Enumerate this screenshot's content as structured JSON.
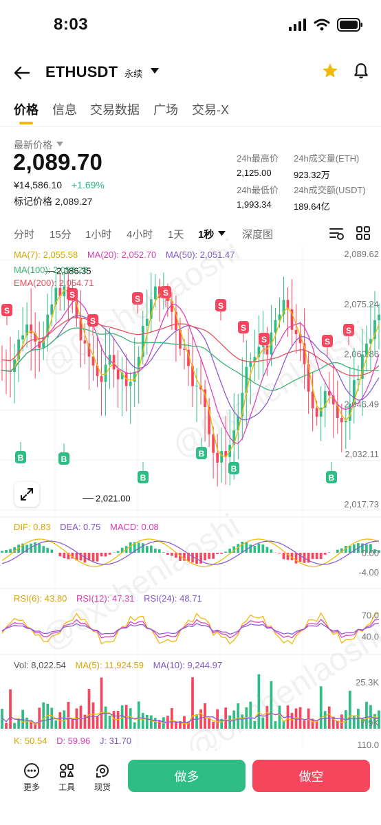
{
  "status_bar": {
    "time": "8:03"
  },
  "header": {
    "symbol": "ETHUSDT",
    "contract_type": "永续"
  },
  "tabs": [
    "价格",
    "信息",
    "交易数据",
    "广场",
    "交易-X"
  ],
  "price": {
    "latest_label": "最新价格",
    "last_price": "2,089.70",
    "cny_price": "¥14,586.10",
    "change_pct": "+1.69%",
    "mark_price": "标记价格 2,089.27"
  },
  "stats": {
    "high_24h_label": "24h最高价",
    "high_24h": "2,125.00",
    "vol_eth_label": "24h成交量(ETH)",
    "vol_eth": "923.32万",
    "low_24h_label": "24h最低价",
    "low_24h": "1,993.34",
    "vol_usdt_label": "24h成交额(USDT)",
    "vol_usdt": "189.64亿"
  },
  "timeframes": [
    "分时",
    "15分",
    "1小时",
    "4小时",
    "1天",
    "1秒",
    "深度图"
  ],
  "active_timeframe": "1秒",
  "watermark": "@0xchenlaoshi",
  "indicators": {
    "ma": {
      "ma7": "MA(7): 2,055.58",
      "ma20": "MA(20): 2,052.70",
      "ma50": "MA(50): 2,051.47",
      "ma100": "MA(100): 2,053.28",
      "ema200": "EMA(200): 2,054.71"
    },
    "macd": {
      "dif": "DIF: 0.83",
      "dea": "DEA: 0.75",
      "macd": "MACD: 0.08"
    },
    "rsi": {
      "rsi6": "RSI(6): 43.80",
      "rsi12": "RSI(12): 47.31",
      "rsi24": "RSI(24): 48.71"
    },
    "vol": {
      "vol": "Vol: 8,022.54",
      "ma5": "MA(5): 11,924.59",
      "ma10": "MA(10): 9,244.97"
    },
    "kdj": {
      "k": "K: 50.54",
      "d": "D: 59.96",
      "j": "J: 31.70"
    }
  },
  "chart_data": {
    "type": "candlestick",
    "price_axis_ticks": [
      "2,089.62",
      "2,075.24",
      "2,060.86",
      "2,046.49",
      "2,032.11",
      "2,017.73"
    ],
    "price_axis_values": [
      2089.62,
      2075.24,
      2060.86,
      2046.49,
      2032.11,
      2017.73
    ],
    "high_marker": "2,086.35",
    "low_marker": "2,021.00",
    "macd_axis_ticks": [
      "0.00",
      "-4.00"
    ],
    "rsi_axis_ticks": [
      "70.0",
      "40.0"
    ],
    "vol_axis_ticks": [
      "25.3K",
      "7.9K"
    ],
    "kdj_axis_ticks": [
      "110.0"
    ],
    "sell_marker_label": "S",
    "buy_marker_label": "B",
    "colors": {
      "up": "#2ebd85",
      "down": "#f6465d",
      "ma7": "#f0b90b",
      "ma20": "#e040c0",
      "ma50": "#8a5cd6",
      "ma100": "#3cb371",
      "ema200": "#e8505b"
    }
  },
  "bottom": {
    "more": "更多",
    "tools": "工具",
    "spot": "现货",
    "long": "做多",
    "short": "做空"
  }
}
